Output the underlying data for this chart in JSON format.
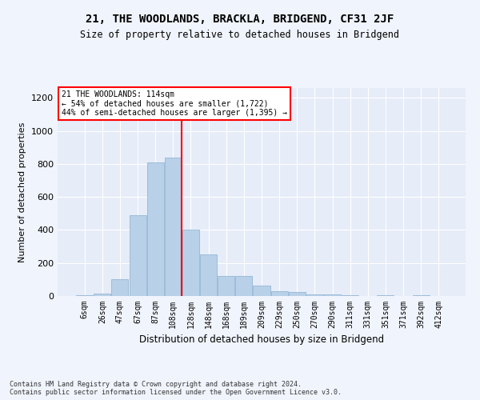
{
  "title": "21, THE WOODLANDS, BRACKLA, BRIDGEND, CF31 2JF",
  "subtitle": "Size of property relative to detached houses in Bridgend",
  "xlabel": "Distribution of detached houses by size in Bridgend",
  "ylabel": "Number of detached properties",
  "footer_line1": "Contains HM Land Registry data © Crown copyright and database right 2024.",
  "footer_line2": "Contains public sector information licensed under the Open Government Licence v3.0.",
  "categories": [
    "6sqm",
    "26sqm",
    "47sqm",
    "67sqm",
    "87sqm",
    "108sqm",
    "128sqm",
    "148sqm",
    "168sqm",
    "189sqm",
    "209sqm",
    "229sqm",
    "250sqm",
    "270sqm",
    "290sqm",
    "311sqm",
    "331sqm",
    "351sqm",
    "371sqm",
    "392sqm",
    "412sqm"
  ],
  "values": [
    5,
    15,
    100,
    490,
    810,
    840,
    400,
    250,
    120,
    120,
    65,
    30,
    22,
    10,
    10,
    5,
    0,
    5,
    0,
    5,
    0
  ],
  "bar_color": "#b8d0e8",
  "bar_edge_color": "#8ab0d0",
  "vline_color": "red",
  "vline_x": 5.5,
  "annotation_text": "21 THE WOODLANDS: 114sqm\n← 54% of detached houses are smaller (1,722)\n44% of semi-detached houses are larger (1,395) →",
  "annotation_box_color": "white",
  "annotation_box_edge_color": "red",
  "ylim": [
    0,
    1260
  ],
  "yticks": [
    0,
    200,
    400,
    600,
    800,
    1000,
    1200
  ],
  "background_color": "#f0f4fc",
  "plot_background_color": "#e6ecf8",
  "grid_color": "#ffffff",
  "title_fontsize": 10,
  "subtitle_fontsize": 8.5,
  "tick_fontsize": 7,
  "ylabel_fontsize": 8,
  "xlabel_fontsize": 8.5,
  "footer_fontsize": 6
}
